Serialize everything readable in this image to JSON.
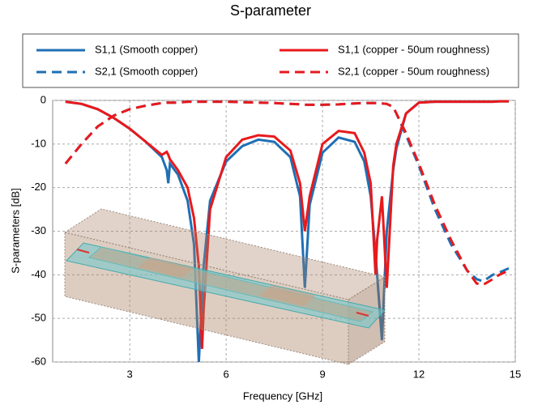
{
  "chart_data": {
    "type": "line",
    "title": "S-parameter",
    "x_label": "Frequency [GHz]",
    "y_label": "S-parameters [dB]",
    "x": [
      1,
      1.5,
      2,
      2.5,
      3,
      3.5,
      4,
      4.15,
      4.2,
      4.25,
      4.5,
      4.8,
      5,
      5.15,
      5.25,
      5.3,
      5.5,
      6,
      6.5,
      7,
      7.5,
      8,
      8.3,
      8.45,
      8.6,
      9,
      9.5,
      10,
      10.3,
      10.5,
      10.65,
      10.7,
      10.85,
      11,
      11.2,
      11.3,
      11.6,
      12,
      12.5,
      13,
      13.5,
      13.8,
      14,
      14.3,
      14.5,
      14.8
    ],
    "series": [
      {
        "name": "S1,1 (Smooth copper)",
        "color": "#1f6fb5",
        "line_style": "solid",
        "values": [
          -0.3,
          -0.8,
          -2,
          -4,
          -6.5,
          -9.5,
          -13,
          -16,
          -19,
          -14.5,
          -17,
          -23,
          -33,
          -60,
          -45,
          -38,
          -23,
          -14,
          -10.5,
          -9,
          -9.5,
          -13,
          -22,
          -43,
          -24,
          -12,
          -8.5,
          -9.5,
          -14,
          -22,
          -35,
          -40,
          -55,
          -30,
          -16,
          -11,
          -3,
          -0.5,
          -0.3,
          -0.3,
          -0.3,
          -0.3,
          -0.3,
          -0.3,
          -0.2,
          -0.2
        ]
      },
      {
        "name": "S1,1 (copper - 50um roughness)",
        "color": "#e8191c",
        "line_style": "solid",
        "values": [
          -0.3,
          -0.8,
          -2,
          -4,
          -6.5,
          -9.5,
          -12.5,
          -11.8,
          -12.5,
          -13.5,
          -16,
          -20,
          -27,
          -38,
          -57,
          -48,
          -25,
          -13,
          -9,
          -8,
          -8.3,
          -11.5,
          -19,
          -30,
          -22,
          -10,
          -7,
          -7.5,
          -12,
          -19,
          -40,
          -32,
          -22,
          -43,
          -15,
          -10,
          -3,
          -0.5,
          -0.3,
          -0.3,
          -0.3,
          -0.3,
          -0.3,
          -0.3,
          -0.2,
          -0.2
        ]
      },
      {
        "name": "S2,1 (Smooth copper)",
        "color": "#1f6fb5",
        "line_style": "dashed",
        "values": [
          -14.5,
          -10,
          -6,
          -3.5,
          -2,
          -1.2,
          -0.6,
          -0.5,
          -0.5,
          -0.5,
          -0.5,
          -0.3,
          -0.3,
          -0.3,
          -0.3,
          -0.3,
          -0.3,
          -0.3,
          -0.4,
          -0.5,
          -0.6,
          -0.8,
          -0.9,
          -1,
          -1,
          -1,
          -0.9,
          -0.7,
          -0.6,
          -0.6,
          -0.6,
          -0.6,
          -0.7,
          -0.8,
          -1.5,
          -3,
          -8,
          -15,
          -25,
          -33,
          -39,
          -41,
          -41.5,
          -40,
          -39.5,
          -38.5
        ]
      },
      {
        "name": "S2,1 (copper - 50um roughness)",
        "color": "#e8191c",
        "line_style": "dashed",
        "values": [
          -14.5,
          -10,
          -6,
          -3.5,
          -2,
          -1.2,
          -0.6,
          -0.5,
          -0.5,
          -0.5,
          -0.5,
          -0.3,
          -0.3,
          -0.3,
          -0.3,
          -0.3,
          -0.3,
          -0.3,
          -0.4,
          -0.5,
          -0.6,
          -0.8,
          -0.9,
          -1,
          -1,
          -1,
          -0.9,
          -0.7,
          -0.6,
          -0.6,
          -0.6,
          -0.6,
          -0.7,
          -0.8,
          -1.5,
          -3,
          -7.5,
          -14.5,
          -24,
          -32,
          -39,
          -42,
          -42.3,
          -41,
          -40,
          -39
        ]
      }
    ],
    "xlim": [
      0.6,
      15
    ],
    "ylim": [
      -60,
      0
    ],
    "xticks": [
      3,
      6,
      9,
      12,
      15
    ],
    "yticks": [
      0,
      -10,
      -20,
      -30,
      -40,
      -50,
      -60
    ],
    "grid": true
  }
}
